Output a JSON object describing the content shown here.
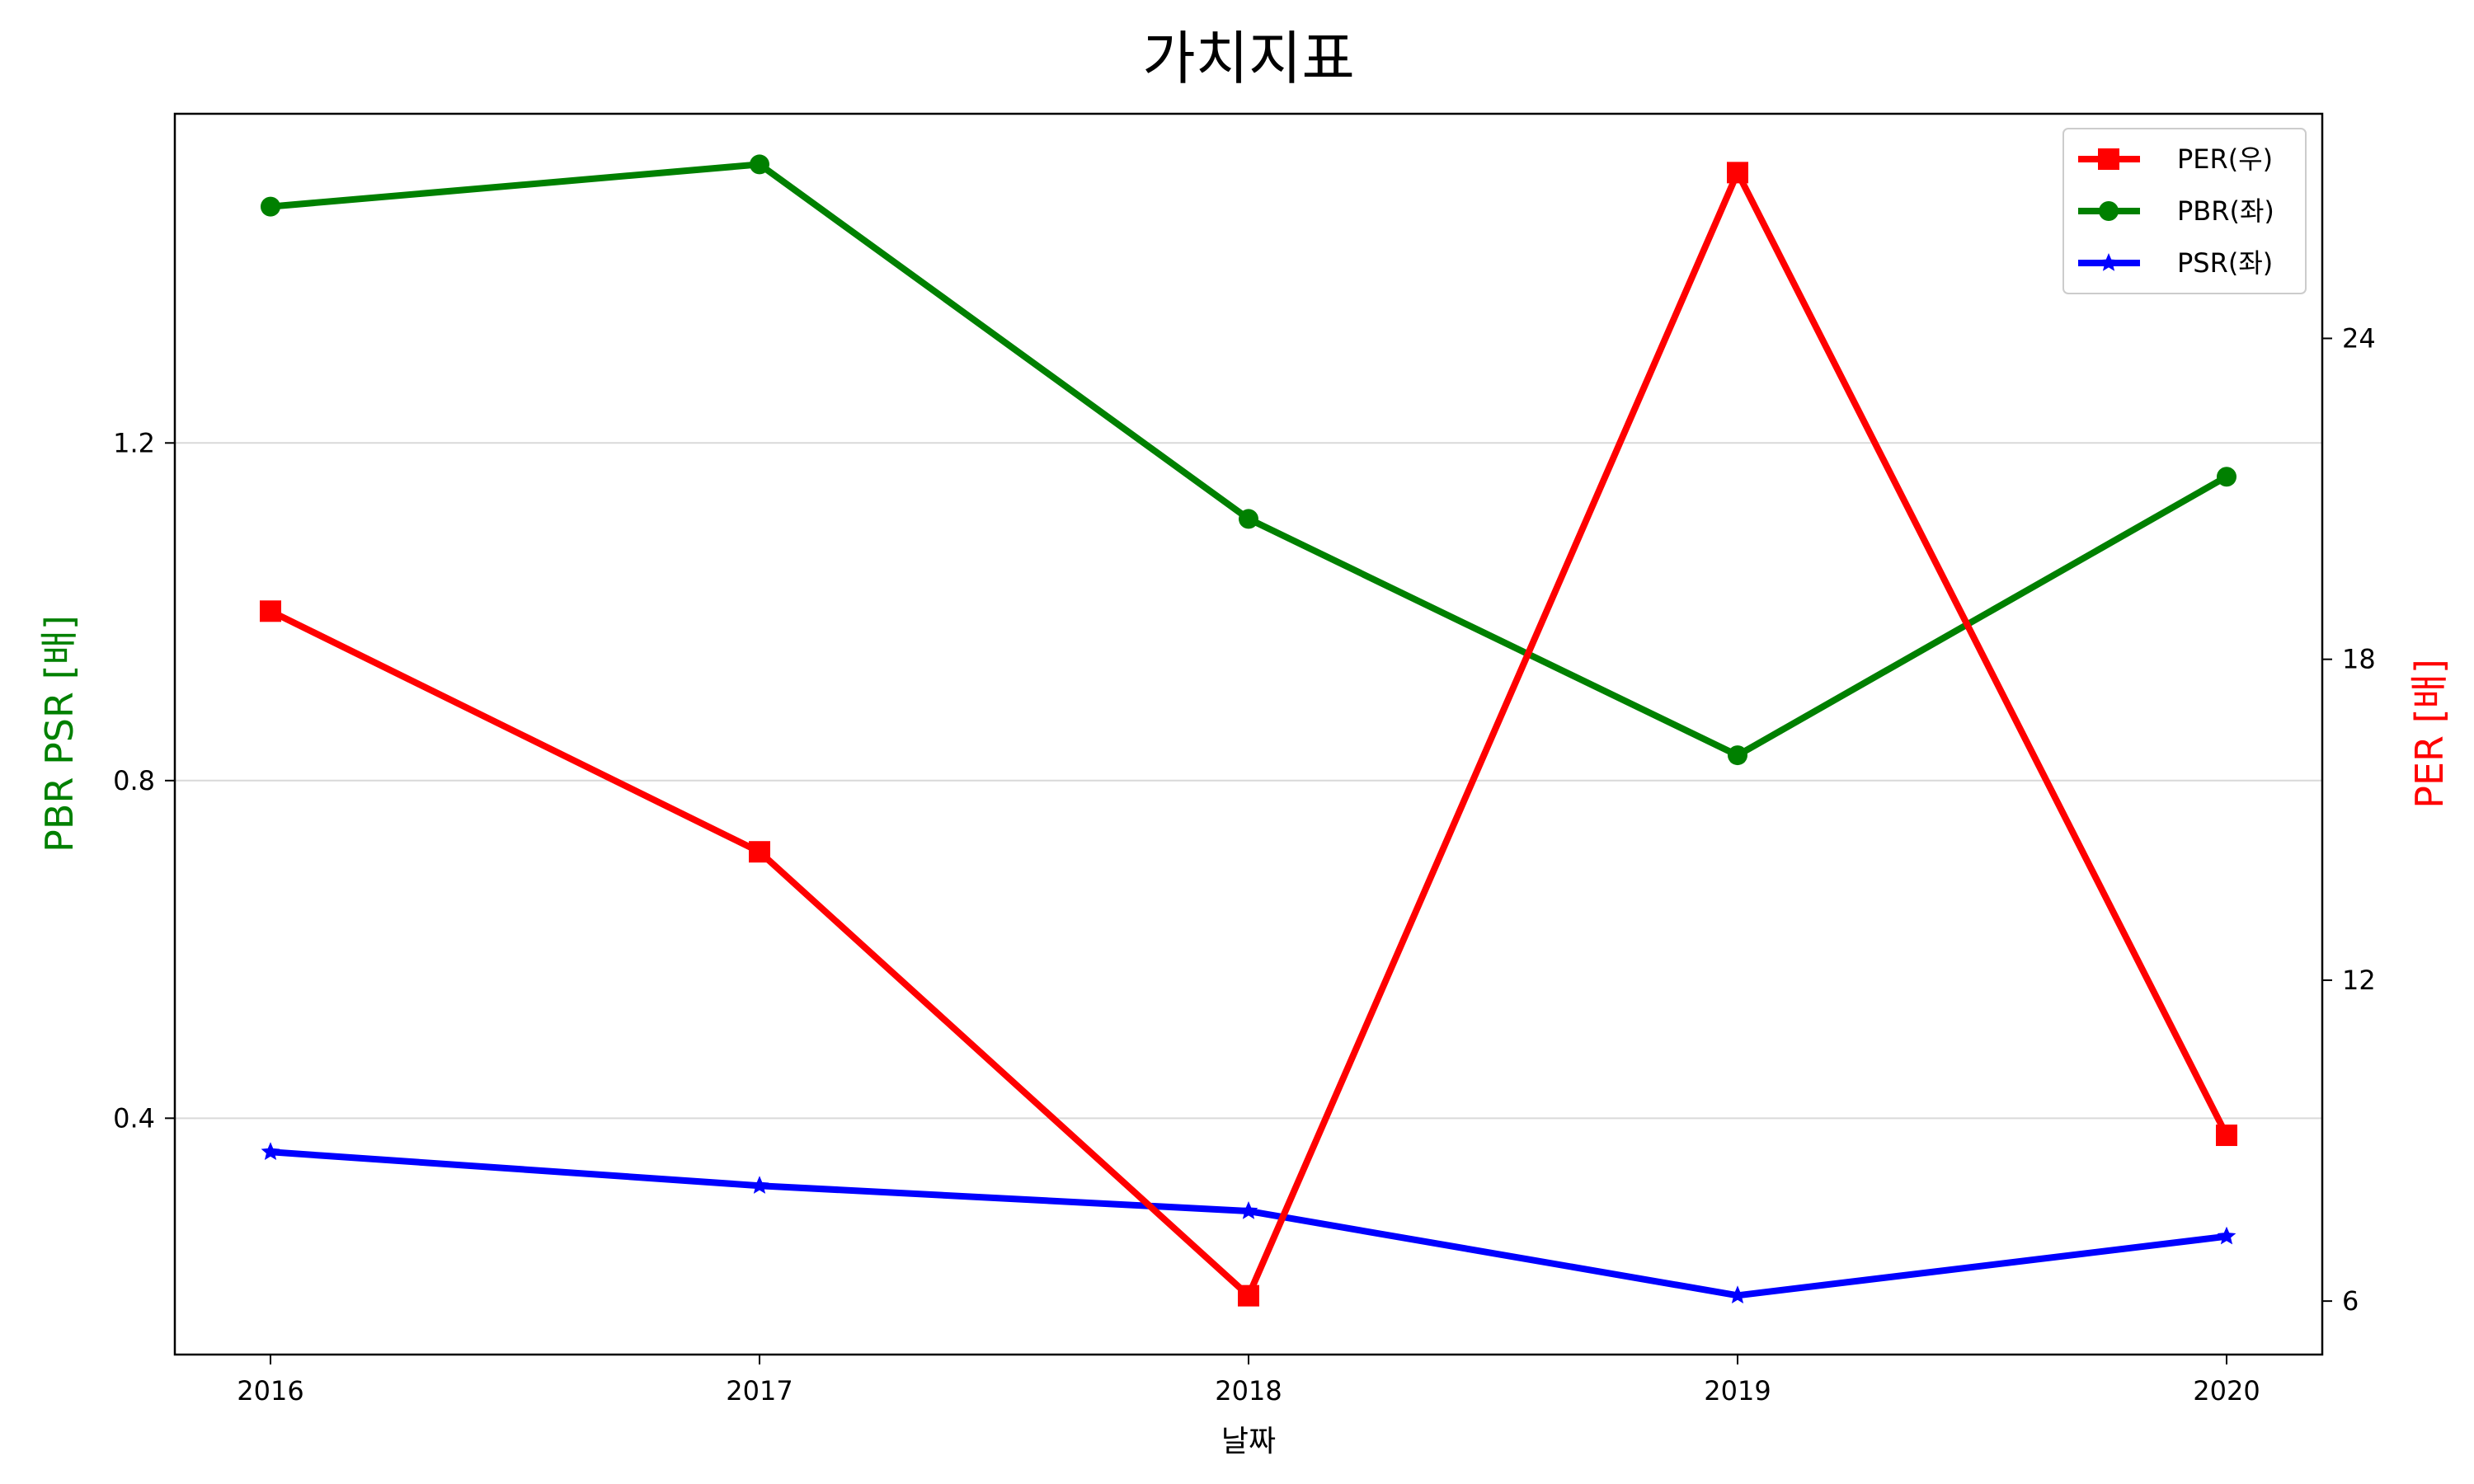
{
  "chart_data": {
    "type": "line",
    "title": "가치지표",
    "xlabel": "날짜",
    "ylabel_left": "PBR PSR [배]",
    "ylabel_right": "PER [배]",
    "categories": [
      "2016",
      "2017",
      "2018",
      "2019",
      "2020"
    ],
    "left_axis": {
      "ylim": [
        0.12,
        1.59
      ],
      "ticks": [
        "0.4",
        "0.8",
        "1.2"
      ],
      "tick_values": [
        0.4,
        0.8,
        1.2
      ],
      "color": "#008000"
    },
    "right_axis": {
      "ylim": [
        5.0,
        28.2
      ],
      "ticks": [
        "6",
        "12",
        "18",
        "24"
      ],
      "tick_values": [
        6,
        12,
        18,
        24
      ],
      "color": "#ff0000"
    },
    "grid": "horizontal, left axis",
    "legend_position": "top-right",
    "series": [
      {
        "name": "PER(우)",
        "axis": "right",
        "color": "#ff0000",
        "marker": "square",
        "values": [
          18.9,
          14.4,
          6.1,
          27.1,
          9.1
        ]
      },
      {
        "name": "PBR(좌)",
        "axis": "left",
        "color": "#008000",
        "marker": "circle",
        "values": [
          1.48,
          1.53,
          1.11,
          0.83,
          1.16
        ]
      },
      {
        "name": "PSR(좌)",
        "axis": "left",
        "color": "#0000ff",
        "marker": "star",
        "values": [
          0.36,
          0.32,
          0.29,
          0.19,
          0.26
        ]
      }
    ]
  }
}
